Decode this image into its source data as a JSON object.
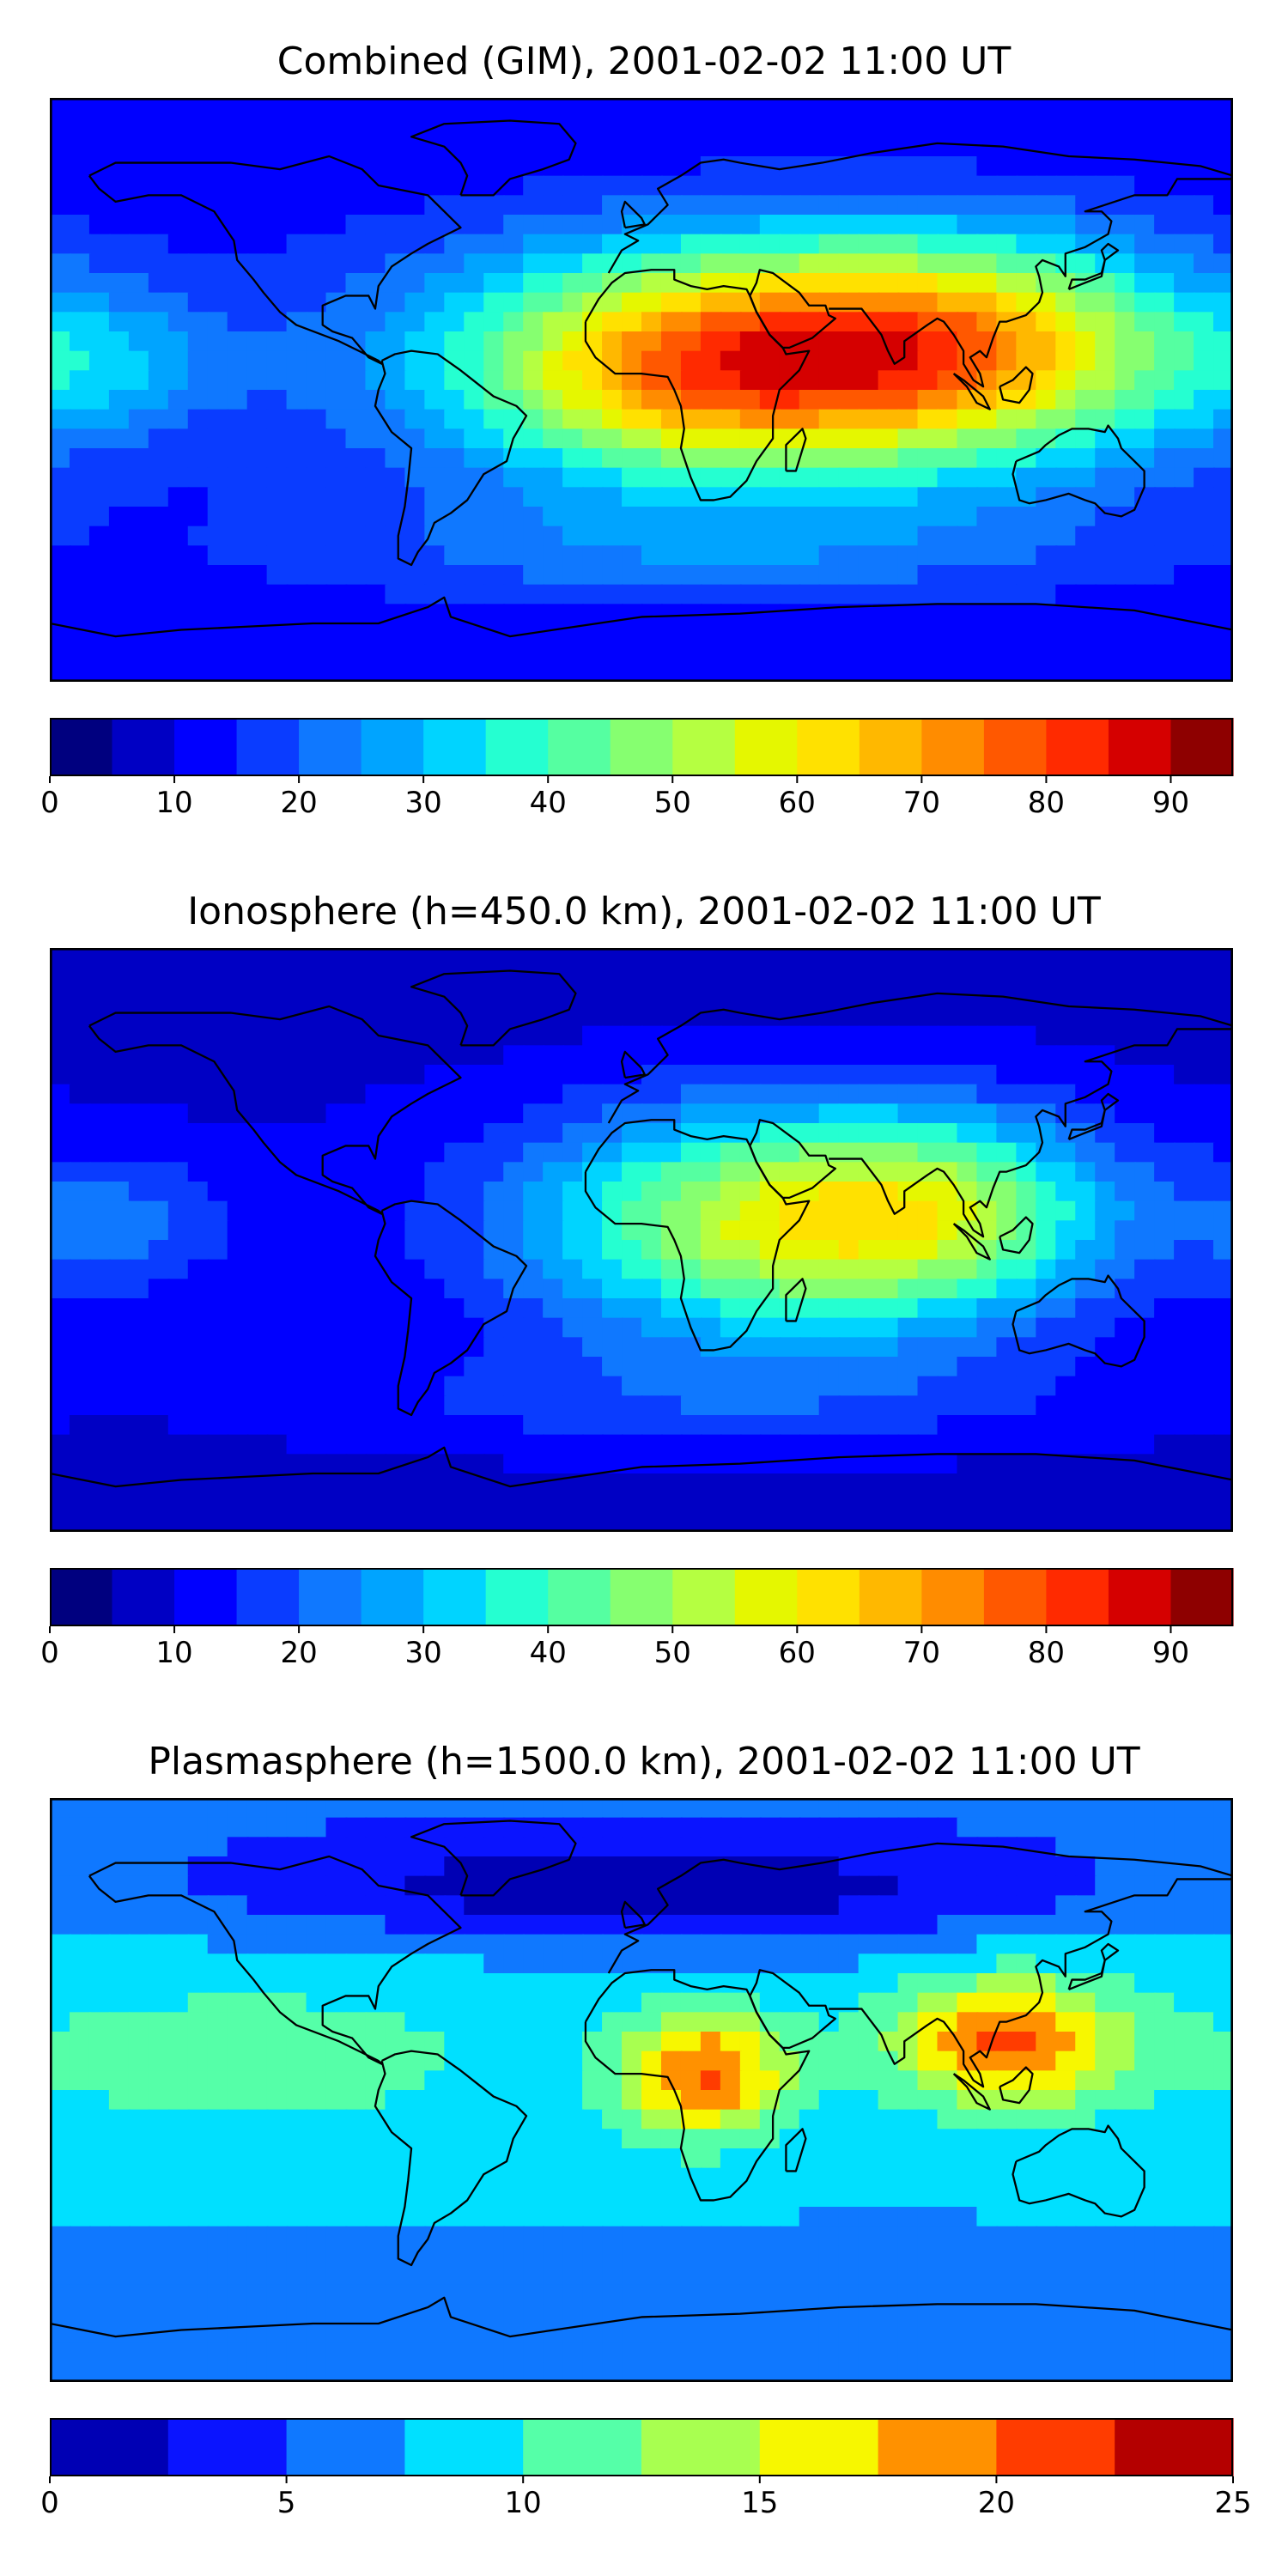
{
  "panels": [
    {
      "title": "Combined (GIM), 2001-02-02 11:00 UT",
      "colorbar": {
        "min": 0,
        "max": 95,
        "step": 5,
        "ticks": [
          "0",
          "10",
          "20",
          "30",
          "40",
          "50",
          "60",
          "70",
          "80",
          "90"
        ],
        "tick_values": [
          0,
          10,
          20,
          30,
          40,
          50,
          60,
          70,
          80,
          90
        ],
        "colors": [
          "#00007f",
          "#0000c4",
          "#0000ff",
          "#0a3cff",
          "#0f78ff",
          "#00a4ff",
          "#00d4ff",
          "#25ffd1",
          "#55ffa1",
          "#86ff70",
          "#b5ff41",
          "#e5f700",
          "#ffe100",
          "#ffb800",
          "#ff8c00",
          "#ff5800",
          "#ff2a00",
          "#d50000",
          "#8e0000"
        ]
      },
      "features": [
        {
          "lon": 45,
          "lat": 10,
          "sx": 70,
          "sy": 25,
          "amp": 60
        },
        {
          "lon": 105,
          "lat": 15,
          "sx": 45,
          "sy": 22,
          "amp": 22
        },
        {
          "lon": 10,
          "lat": 0,
          "sx": 35,
          "sy": 20,
          "amp": 12
        },
        {
          "lon": -160,
          "lat": 8,
          "sx": 25,
          "sy": 15,
          "amp": 12
        },
        {
          "lon": 20,
          "lat": -50,
          "sx": 90,
          "sy": 12,
          "amp": 10
        }
      ],
      "base": 14
    },
    {
      "title": "Ionosphere  (h=450.0 km), 2001-02-02 11:00 UT",
      "colorbar": {
        "min": 0,
        "max": 95,
        "step": 5,
        "ticks": [
          "0",
          "10",
          "20",
          "30",
          "40",
          "50",
          "60",
          "70",
          "80",
          "90"
        ],
        "tick_values": [
          0,
          10,
          20,
          30,
          40,
          50,
          60,
          70,
          80,
          90
        ],
        "colors": [
          "#00007f",
          "#0000c4",
          "#0000ff",
          "#0a3cff",
          "#0f78ff",
          "#00a4ff",
          "#00d4ff",
          "#25ffd1",
          "#55ffa1",
          "#86ff70",
          "#b5ff41",
          "#e5f700",
          "#ffe100",
          "#ffb800",
          "#ff8c00",
          "#ff5800",
          "#ff2a00",
          "#d50000",
          "#8e0000"
        ]
      },
      "features": [
        {
          "lon": 45,
          "lat": 5,
          "sx": 55,
          "sy": 25,
          "amp": 45
        },
        {
          "lon": 95,
          "lat": 10,
          "sx": 35,
          "sy": 20,
          "amp": 18
        },
        {
          "lon": -160,
          "lat": 5,
          "sx": 25,
          "sy": 15,
          "amp": 12
        },
        {
          "lon": 20,
          "lat": -50,
          "sx": 90,
          "sy": 12,
          "amp": 8
        }
      ],
      "base": 10
    },
    {
      "title": "Plasmasphere (h=1500.0 km), 2001-02-02 11:00 UT",
      "colorbar": {
        "min": 0,
        "max": 25,
        "step": 2.5,
        "ticks": [
          "0",
          "5",
          "10",
          "15",
          "20",
          "25"
        ],
        "tick_values": [
          0,
          5,
          10,
          15,
          20,
          25
        ],
        "colors": [
          "#0000b4",
          "#0a14ff",
          "#0f78ff",
          "#00e0ff",
          "#55ffa8",
          "#a8ff50",
          "#f7f700",
          "#ff9100",
          "#ff3c00",
          "#b40000"
        ]
      },
      "features": [
        {
          "lon": 20,
          "lat": 5,
          "sx": 18,
          "sy": 14,
          "amp": 12
        },
        {
          "lon": 110,
          "lat": 15,
          "sx": 25,
          "sy": 14,
          "amp": 12
        },
        {
          "lon": -120,
          "lat": 12,
          "sx": 70,
          "sy": 22,
          "amp": 3
        },
        {
          "lon": 0,
          "lat": 62,
          "sx": 90,
          "sy": 12,
          "amp": -6
        }
      ],
      "base": 8
    }
  ]
}
